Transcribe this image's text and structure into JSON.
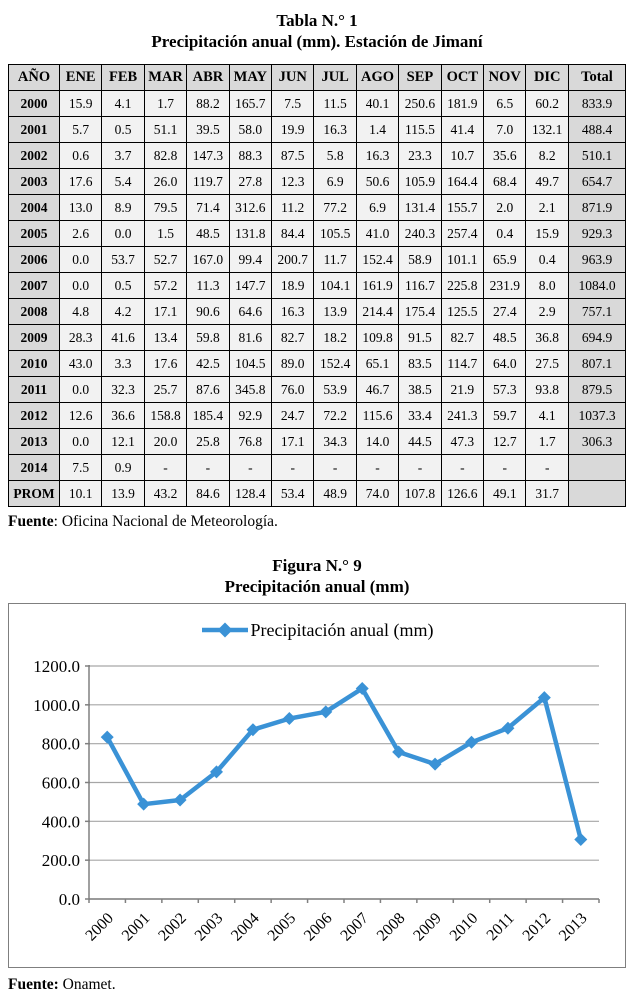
{
  "table": {
    "title_line1": "Tabla N.° 1",
    "title_line2": "Precipitación anual (mm). Estación de Jimaní",
    "headers": [
      "AÑO",
      "ENE",
      "FEB",
      "MAR",
      "ABR",
      "MAY",
      "JUN",
      "JUL",
      "AGO",
      "SEP",
      "OCT",
      "NOV",
      "DIC",
      "Total"
    ],
    "rows": [
      [
        "2000",
        "15.9",
        "4.1",
        "1.7",
        "88.2",
        "165.7",
        "7.5",
        "11.5",
        "40.1",
        "250.6",
        "181.9",
        "6.5",
        "60.2",
        "833.9"
      ],
      [
        "2001",
        "5.7",
        "0.5",
        "51.1",
        "39.5",
        "58.0",
        "19.9",
        "16.3",
        "1.4",
        "115.5",
        "41.4",
        "7.0",
        "132.1",
        "488.4"
      ],
      [
        "2002",
        "0.6",
        "3.7",
        "82.8",
        "147.3",
        "88.3",
        "87.5",
        "5.8",
        "16.3",
        "23.3",
        "10.7",
        "35.6",
        "8.2",
        "510.1"
      ],
      [
        "2003",
        "17.6",
        "5.4",
        "26.0",
        "119.7",
        "27.8",
        "12.3",
        "6.9",
        "50.6",
        "105.9",
        "164.4",
        "68.4",
        "49.7",
        "654.7"
      ],
      [
        "2004",
        "13.0",
        "8.9",
        "79.5",
        "71.4",
        "312.6",
        "11.2",
        "77.2",
        "6.9",
        "131.4",
        "155.7",
        "2.0",
        "2.1",
        "871.9"
      ],
      [
        "2005",
        "2.6",
        "0.0",
        "1.5",
        "48.5",
        "131.8",
        "84.4",
        "105.5",
        "41.0",
        "240.3",
        "257.4",
        "0.4",
        "15.9",
        "929.3"
      ],
      [
        "2006",
        "0.0",
        "53.7",
        "52.7",
        "167.0",
        "99.4",
        "200.7",
        "11.7",
        "152.4",
        "58.9",
        "101.1",
        "65.9",
        "0.4",
        "963.9"
      ],
      [
        "2007",
        "0.0",
        "0.5",
        "57.2",
        "11.3",
        "147.7",
        "18.9",
        "104.1",
        "161.9",
        "116.7",
        "225.8",
        "231.9",
        "8.0",
        "1084.0"
      ],
      [
        "2008",
        "4.8",
        "4.2",
        "17.1",
        "90.6",
        "64.6",
        "16.3",
        "13.9",
        "214.4",
        "175.4",
        "125.5",
        "27.4",
        "2.9",
        "757.1"
      ],
      [
        "2009",
        "28.3",
        "41.6",
        "13.4",
        "59.8",
        "81.6",
        "82.7",
        "18.2",
        "109.8",
        "91.5",
        "82.7",
        "48.5",
        "36.8",
        "694.9"
      ],
      [
        "2010",
        "43.0",
        "3.3",
        "17.6",
        "42.5",
        "104.5",
        "89.0",
        "152.4",
        "65.1",
        "83.5",
        "114.7",
        "64.0",
        "27.5",
        "807.1"
      ],
      [
        "2011",
        "0.0",
        "32.3",
        "25.7",
        "87.6",
        "345.8",
        "76.0",
        "53.9",
        "46.7",
        "38.5",
        "21.9",
        "57.3",
        "93.8",
        "879.5"
      ],
      [
        "2012",
        "12.6",
        "36.6",
        "158.8",
        "185.4",
        "92.9",
        "24.7",
        "72.2",
        "115.6",
        "33.4",
        "241.3",
        "59.7",
        "4.1",
        "1037.3"
      ],
      [
        "2013",
        "0.0",
        "12.1",
        "20.0",
        "25.8",
        "76.8",
        "17.1",
        "34.3",
        "14.0",
        "44.5",
        "47.3",
        "12.7",
        "1.7",
        "306.3"
      ],
      [
        "2014",
        "7.5",
        "0.9",
        "-",
        "-",
        "-",
        "-",
        "-",
        "-",
        "-",
        "-",
        "-",
        "-",
        ""
      ],
      [
        "PROM",
        "10.1",
        "13.9",
        "43.2",
        "84.6",
        "128.4",
        "53.4",
        "48.9",
        "74.0",
        "107.8",
        "126.6",
        "49.1",
        "31.7",
        ""
      ]
    ],
    "source_label": "Fuente",
    "source_rest": ": Oficina Nacional de Meteorología.",
    "header_bg": "#D9D9D9",
    "cell_bg": "#F2F2F2"
  },
  "figure": {
    "title_line1": "Figura N.° 9",
    "title_line2": "Precipitación anual (mm)",
    "source_label": "Fuente:",
    "source_rest": " Onamet."
  },
  "chart_data": {
    "type": "line",
    "title": "Precipitación anual (mm)",
    "legend_label": "Precipitación anual (mm)",
    "legend_position": "top-center",
    "categories": [
      "2000",
      "2001",
      "2002",
      "2003",
      "2004",
      "2005",
      "2006",
      "2007",
      "2008",
      "2009",
      "2010",
      "2011",
      "2012",
      "2013"
    ],
    "series": [
      {
        "name": "Precipitación anual (mm)",
        "values": [
          833.9,
          488.4,
          510.1,
          654.7,
          871.9,
          929.3,
          963.9,
          1084.0,
          757.1,
          694.9,
          807.1,
          879.5,
          1037.3,
          306.3
        ]
      }
    ],
    "xlabel": "",
    "ylabel": "",
    "ylim": [
      0,
      1200
    ],
    "ytick_step": 200,
    "ytick_decimals": 1,
    "grid": true,
    "marker": "diamond",
    "line_color": "#3A92D6",
    "axis_color": "#808080",
    "gridline_color": "#A6A6A6"
  }
}
